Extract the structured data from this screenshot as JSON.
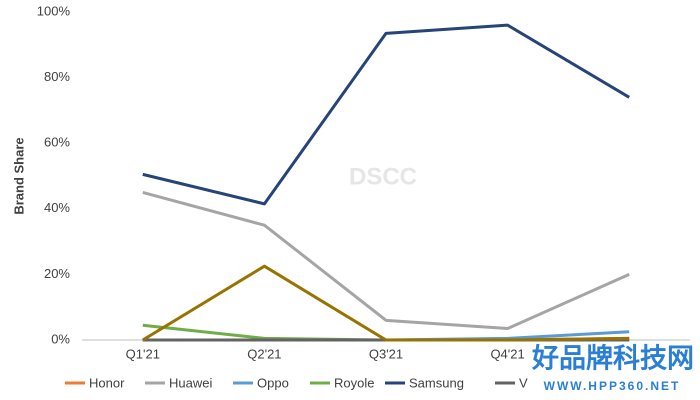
{
  "chart_data": {
    "type": "line",
    "y_label": "Brand Share",
    "categories": [
      "Q1'21",
      "Q2'21",
      "Q3'21",
      "Q4'21",
      null
    ],
    "series": [
      {
        "name": "Honor",
        "color": "#ed7d31",
        "values": [
          0,
          0,
          0,
          0,
          0.5
        ]
      },
      {
        "name": "Huawei",
        "color": "#a5a5a5",
        "values": [
          45,
          35,
          6,
          3.5,
          20
        ]
      },
      {
        "name": "Oppo",
        "color": "#5b9bd5",
        "values": [
          0,
          0,
          0,
          0.5,
          2.5
        ]
      },
      {
        "name": "Royole",
        "color": "#70ad47",
        "values": [
          4.5,
          0.5,
          0,
          0,
          0
        ]
      },
      {
        "name": "Samsung",
        "color": "#264478",
        "values": [
          50.5,
          41.5,
          93.5,
          96,
          74
        ]
      },
      {
        "name": "V",
        "color": "#636363",
        "values": [
          0,
          0,
          0,
          0,
          0
        ]
      },
      {
        "color": "#997300",
        "values": [
          0,
          22.5,
          0,
          0,
          0.5
        ]
      }
    ],
    "ylim": [
      0,
      100
    ],
    "yticks": [
      {
        "value": 0,
        "label": "0%"
      },
      {
        "value": 20,
        "label": "20%"
      },
      {
        "value": 40,
        "label": "40%"
      },
      {
        "value": 60,
        "label": "60%"
      },
      {
        "value": 80,
        "label": "80%"
      },
      {
        "value": 100,
        "label": "100%"
      }
    ],
    "grid": false,
    "watermarks": [
      "DSCC",
      "好品牌科技网",
      "WWW.HPP360.NET"
    ]
  }
}
